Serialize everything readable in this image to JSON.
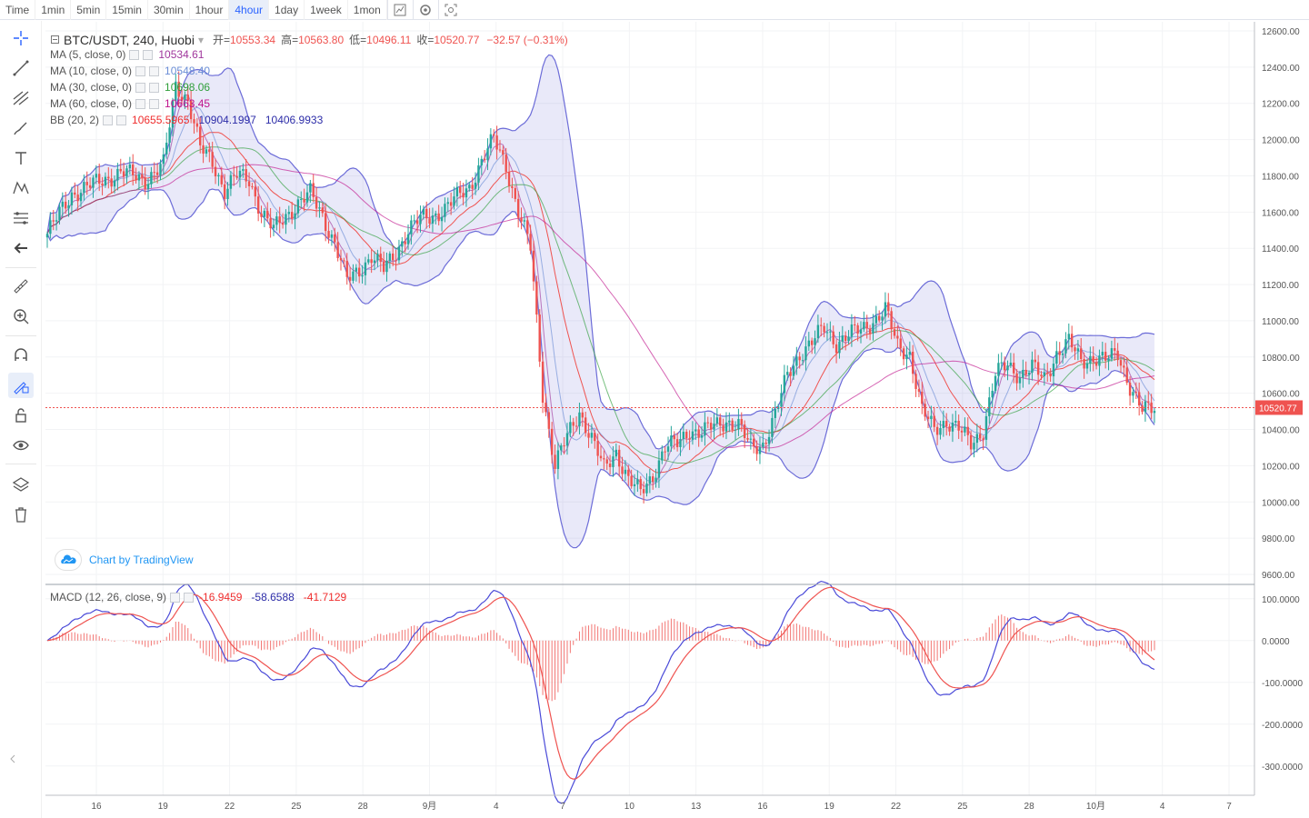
{
  "toolbar": {
    "timeframes": [
      "Time",
      "1min",
      "5min",
      "15min",
      "30min",
      "1hour",
      "4hour",
      "1day",
      "1week",
      "1mon"
    ],
    "active": "4hour"
  },
  "legend": {
    "symbol": "BTC/USDT, 240, Huobi",
    "ohlc": [
      {
        "label": "开=",
        "value": "10553.34"
      },
      {
        "label": "高=",
        "value": "10563.80"
      },
      {
        "label": "低=",
        "value": "10496.11"
      },
      {
        "label": "收=",
        "value": "10520.77"
      }
    ],
    "change": "−32.57 (−0.31%)",
    "ma": [
      {
        "name": "MA (5, close, 0)",
        "value": "10534.61",
        "color": "#a0379c"
      },
      {
        "name": "MA (10, close, 0)",
        "value": "10548.40",
        "color": "#6b8ed6"
      },
      {
        "name": "MA (30, close, 0)",
        "value": "10698.06",
        "color": "#2e9e3a"
      },
      {
        "name": "MA (60, close, 0)",
        "value": "10663.45",
        "color": "#c0148c"
      }
    ],
    "bb": {
      "name": "BB (20, 2)",
      "v1": "10655.5965",
      "v2": "10904.1997",
      "v3": "10406.9933"
    },
    "macd": {
      "name": "MACD (12, 26, close, 9)",
      "v1": "-16.9459",
      "v2": "-58.6588",
      "v3": "-41.7129"
    }
  },
  "logo_text": "Chart by TradingView",
  "colors": {
    "up": "#26a69a",
    "down": "#ef5350",
    "band": "#6c6cd8",
    "price_tag": "#ef5350"
  },
  "chart_data": {
    "type": "candlestick",
    "price_axis": {
      "range": [
        9550,
        12650
      ],
      "ticks": [
        "12600.00",
        "12400.00",
        "12200.00",
        "12000.00",
        "11800.00",
        "11600.00",
        "11400.00",
        "11200.00",
        "11000.00",
        "10800.00",
        "10600.00",
        "10400.00",
        "10200.00",
        "10000.00",
        "9800.00",
        "9600.00"
      ]
    },
    "current_price": "10520.77",
    "macd_axis": {
      "range": [
        -370,
        130
      ],
      "ticks": [
        "100.0000",
        "0.0000",
        "-100.0000",
        "-200.0000",
        "-300.0000"
      ]
    },
    "time_ticks": [
      "16",
      "19",
      "22",
      "25",
      "28",
      "9月",
      "4",
      "7",
      "10",
      "13",
      "16",
      "19",
      "22",
      "25",
      "28",
      "10月",
      "4",
      "7"
    ],
    "close_path": [
      [
        0,
        11480
      ],
      [
        8,
        11700
      ],
      [
        16,
        11760
      ],
      [
        24,
        11820
      ],
      [
        32,
        11780
      ],
      [
        38,
        11860
      ],
      [
        42,
        12300
      ],
      [
        46,
        12220
      ],
      [
        50,
        11950
      ],
      [
        54,
        11880
      ],
      [
        58,
        11720
      ],
      [
        62,
        11800
      ],
      [
        66,
        11780
      ],
      [
        70,
        11600
      ],
      [
        74,
        11500
      ],
      [
        78,
        11580
      ],
      [
        82,
        11650
      ],
      [
        86,
        11700
      ],
      [
        90,
        11580
      ],
      [
        94,
        11430
      ],
      [
        98,
        11220
      ],
      [
        102,
        11280
      ],
      [
        106,
        11360
      ],
      [
        110,
        11280
      ],
      [
        114,
        11380
      ],
      [
        118,
        11500
      ],
      [
        122,
        11560
      ],
      [
        126,
        11580
      ],
      [
        130,
        11620
      ],
      [
        134,
        11680
      ],
      [
        138,
        11740
      ],
      [
        142,
        11880
      ],
      [
        146,
        12000
      ],
      [
        150,
        11860
      ],
      [
        154,
        11600
      ],
      [
        158,
        11400
      ],
      [
        162,
        10600
      ],
      [
        166,
        10200
      ],
      [
        170,
        10360
      ],
      [
        174,
        10500
      ],
      [
        178,
        10350
      ],
      [
        182,
        10180
      ],
      [
        186,
        10280
      ],
      [
        190,
        10120
      ],
      [
        194,
        10050
      ],
      [
        198,
        10150
      ],
      [
        202,
        10300
      ],
      [
        206,
        10320
      ],
      [
        210,
        10400
      ],
      [
        214,
        10380
      ],
      [
        218,
        10420
      ],
      [
        222,
        10450
      ],
      [
        226,
        10420
      ],
      [
        230,
        10300
      ],
      [
        234,
        10320
      ],
      [
        238,
        10480
      ],
      [
        242,
        10700
      ],
      [
        246,
        10820
      ],
      [
        250,
        10880
      ],
      [
        254,
        10960
      ],
      [
        258,
        10880
      ],
      [
        262,
        10920
      ],
      [
        266,
        10950
      ],
      [
        270,
        11000
      ],
      [
        274,
        11060
      ],
      [
        278,
        10860
      ],
      [
        282,
        10820
      ],
      [
        286,
        10500
      ],
      [
        290,
        10400
      ],
      [
        294,
        10450
      ],
      [
        298,
        10400
      ],
      [
        302,
        10320
      ],
      [
        306,
        10400
      ],
      [
        310,
        10700
      ],
      [
        314,
        10760
      ],
      [
        318,
        10700
      ],
      [
        322,
        10740
      ],
      [
        326,
        10680
      ],
      [
        330,
        10820
      ],
      [
        334,
        10880
      ],
      [
        338,
        10780
      ],
      [
        342,
        10800
      ],
      [
        346,
        10780
      ],
      [
        350,
        10820
      ],
      [
        354,
        10640
      ],
      [
        358,
        10500
      ],
      [
        362,
        10520
      ]
    ]
  }
}
